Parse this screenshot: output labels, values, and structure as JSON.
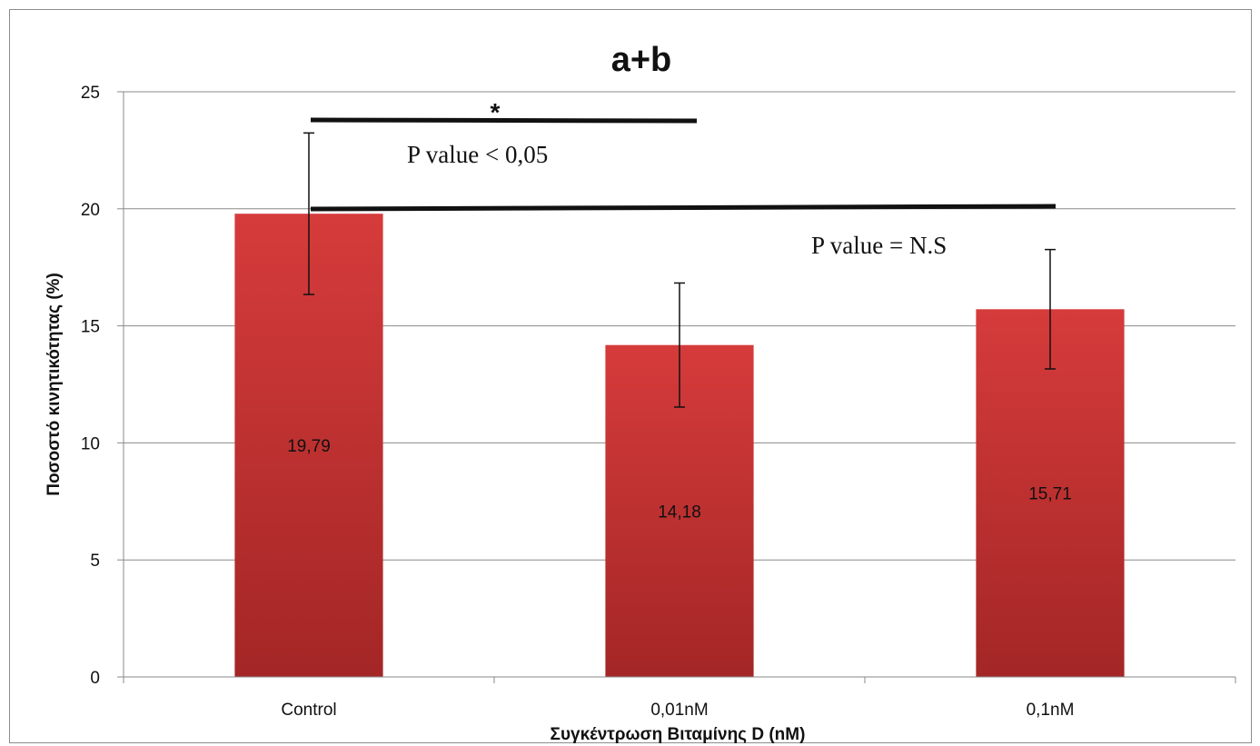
{
  "chart_data": {
    "type": "bar",
    "title": "a+b",
    "xlabel": "Συγκέντρωση Βιταμίνης D (nM)",
    "ylabel": "Ποσοστό κινητικότητας  (%)",
    "categories": [
      "Control",
      "0,01nM",
      "0,1nM"
    ],
    "values": [
      19.79,
      14.18,
      15.71
    ],
    "value_labels": [
      "19,79",
      "14,18",
      "15,71"
    ],
    "error_bars": [
      3.45,
      2.65,
      2.55
    ],
    "ylim": [
      0,
      25
    ],
    "yticks": [
      0,
      5,
      10,
      15,
      20,
      25
    ],
    "grid": true,
    "bar_color_top": "#d63b3b",
    "bar_color_bottom": "#a42626",
    "annotations": {
      "significance_marker": "*",
      "comparison_1": "P value < 0,05",
      "comparison_2": "P value = N.S"
    }
  }
}
